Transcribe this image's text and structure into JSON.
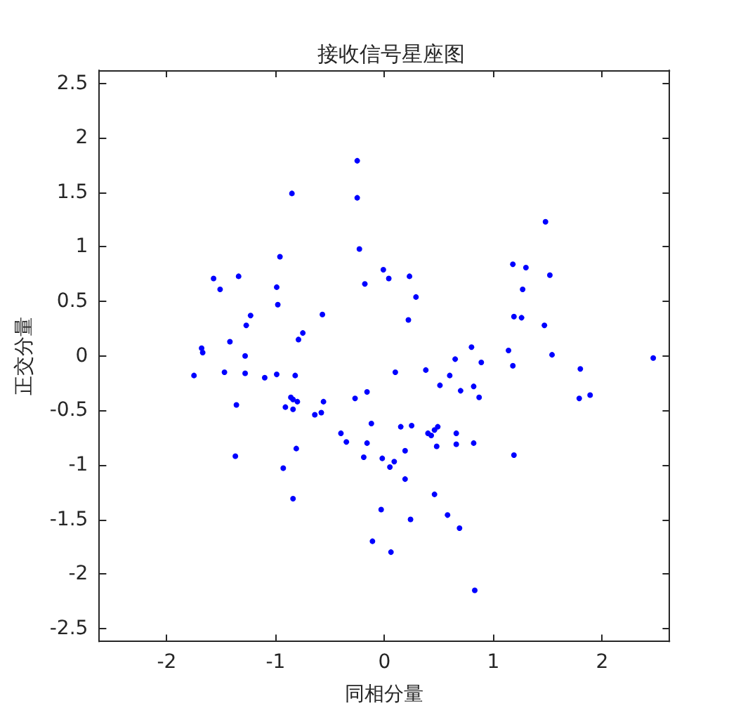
{
  "chart_data": {
    "type": "scatter",
    "title": "接收信号星座图",
    "xlabel": "同相分量",
    "ylabel": "正交分量",
    "x": [
      -0.25,
      -0.85,
      -0.25,
      -0.96,
      -0.23,
      -1.57,
      -1.34,
      -1.51,
      -0.99,
      -0.01,
      0.04,
      -0.18,
      -0.98,
      -1.23,
      -1.27,
      -0.57,
      -1.42,
      -0.75,
      -0.79,
      -1.68,
      -1.67,
      -1.28,
      1.48,
      1.18,
      1.3,
      1.52,
      0.23,
      0.29,
      1.27,
      0.22,
      1.19,
      1.26,
      1.47,
      0.8,
      1.14,
      1.54,
      0.65,
      0.89,
      2.47,
      -1.75,
      -1.47,
      -1.28,
      -1.1,
      -0.99,
      -0.82,
      -1.36,
      -0.86,
      -0.84,
      -0.8,
      -0.91,
      -0.84,
      -0.56,
      -0.64,
      -0.58,
      -0.27,
      -0.16,
      -0.12,
      -0.4,
      -0.35,
      -0.16,
      -0.81,
      -1.37,
      -0.19,
      -0.02,
      0.05,
      0.09,
      -0.93,
      -0.84,
      -0.03,
      -0.11,
      0.06,
      0.1,
      0.38,
      0.6,
      1.18,
      1.8,
      0.51,
      0.82,
      0.7,
      0.87,
      1.79,
      1.89,
      0.15,
      0.25,
      0.4,
      0.43,
      0.46,
      0.49,
      0.48,
      0.66,
      0.66,
      0.82,
      1.19,
      0.19,
      0.19,
      0.46,
      0.24,
      0.58,
      0.69,
      0.83
    ],
    "values": [
      1.79,
      1.49,
      1.45,
      0.91,
      0.98,
      0.71,
      0.73,
      0.61,
      0.63,
      0.79,
      0.71,
      0.66,
      0.47,
      0.37,
      0.28,
      0.38,
      0.13,
      0.21,
      0.15,
      0.07,
      0.03,
      0.0,
      1.23,
      0.84,
      0.81,
      0.74,
      0.73,
      0.54,
      0.61,
      0.33,
      0.36,
      0.35,
      0.28,
      0.08,
      0.05,
      0.01,
      -0.03,
      -0.06,
      -0.02,
      -0.18,
      -0.15,
      -0.16,
      -0.2,
      -0.17,
      -0.18,
      -0.45,
      -0.38,
      -0.4,
      -0.42,
      -0.47,
      -0.49,
      -0.42,
      -0.54,
      -0.52,
      -0.39,
      -0.33,
      -0.62,
      -0.71,
      -0.79,
      -0.8,
      -0.85,
      -0.92,
      -0.93,
      -0.94,
      -1.02,
      -0.97,
      -1.03,
      -1.31,
      -1.41,
      -1.7,
      -1.8,
      -0.15,
      -0.13,
      -0.18,
      -0.09,
      -0.12,
      -0.27,
      -0.28,
      -0.32,
      -0.38,
      -0.39,
      -0.36,
      -0.65,
      -0.64,
      -0.71,
      -0.73,
      -0.68,
      -0.65,
      -0.83,
      -0.71,
      -0.81,
      -0.8,
      -0.91,
      -0.87,
      -1.13,
      -1.27,
      -1.5,
      -1.46,
      -1.58,
      -2.15
    ],
    "color": "#0000ff",
    "marker": "circle",
    "xlim": [
      -2.62,
      2.62
    ],
    "ylim": [
      -2.62,
      2.62
    ],
    "xticks": [
      -2,
      -1,
      0,
      1,
      2
    ],
    "yticks": [
      -2.5,
      -2,
      -1.5,
      -1,
      -0.5,
      0,
      0.5,
      1,
      1.5,
      2,
      2.5
    ],
    "grid": false
  }
}
